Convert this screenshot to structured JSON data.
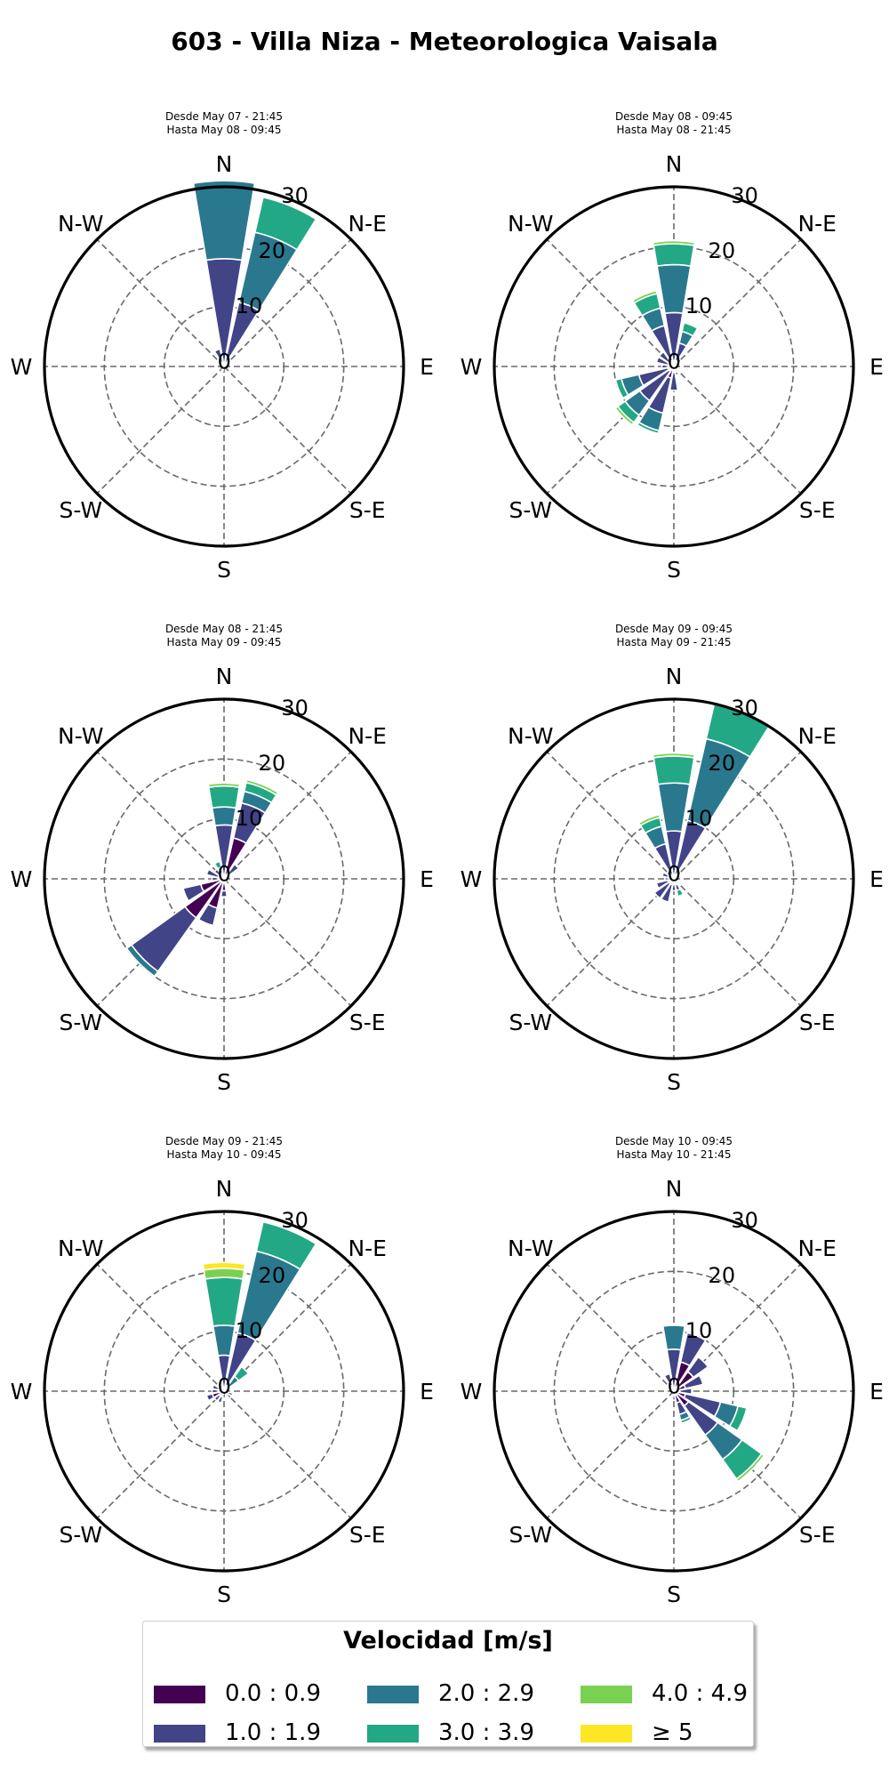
{
  "title": "603 - Villa Niza - Meteorologica Vaisala",
  "legend": {
    "title": "Velocidad [m/s]",
    "bins": [
      {
        "label": "0.0 : 0.9",
        "color": "#440154"
      },
      {
        "label": "1.0 : 1.9",
        "color": "#414487"
      },
      {
        "label": "2.0 : 2.9",
        "color": "#2a788e"
      },
      {
        "label": "3.0 : 3.9",
        "color": "#22a884"
      },
      {
        "label": "4.0 : 4.9",
        "color": "#7ad151"
      },
      {
        "label": "≥ 5",
        "color": "#fde725"
      }
    ]
  },
  "chart_data": [
    {
      "type": "windrose",
      "subtitle_from": "Desde May 07 - 21:45",
      "subtitle_to": "Hasta May 08 - 09:45",
      "direction_labels": [
        "N",
        "N-E",
        "E",
        "S-E",
        "S",
        "S-W",
        "W",
        "N-W"
      ],
      "radial_ticks": [
        0,
        10,
        20,
        30
      ],
      "rmax": 30,
      "sectors": [
        {
          "dir": 0,
          "stack": [
            0,
            18,
            13,
            0,
            0,
            0
          ]
        },
        {
          "dir": 22.5,
          "stack": [
            0,
            11,
            12,
            6,
            0,
            0
          ]
        },
        {
          "dir": 45,
          "stack": [
            0,
            1,
            0,
            0,
            0,
            0
          ]
        },
        {
          "dir": 337.5,
          "stack": [
            0.5,
            2.5,
            0,
            0,
            0,
            0
          ]
        },
        {
          "dir": 202.5,
          "stack": [
            0,
            0.8,
            0,
            0,
            0,
            0
          ]
        },
        {
          "dir": 315,
          "stack": [
            0,
            0.5,
            0,
            0,
            0,
            0
          ]
        }
      ]
    },
    {
      "type": "windrose",
      "subtitle_from": "Desde May 08 - 09:45",
      "subtitle_to": "Hasta May 08 - 21:45",
      "direction_labels": [
        "N",
        "N-E",
        "E",
        "S-E",
        "S",
        "S-W",
        "W",
        "N-W"
      ],
      "radial_ticks": [
        0,
        10,
        20,
        30
      ],
      "rmax": 30,
      "sectors": [
        {
          "dir": 0,
          "stack": [
            1,
            8,
            8,
            3.5,
            0.5,
            0
          ]
        },
        {
          "dir": 22.5,
          "stack": [
            1,
            3,
            2,
            1.5,
            0,
            0
          ]
        },
        {
          "dir": 45,
          "stack": [
            0.5,
            1,
            0,
            0,
            0,
            0
          ]
        },
        {
          "dir": 337.5,
          "stack": [
            1,
            6,
            3,
            2.5,
            0.5,
            0
          ]
        },
        {
          "dir": 315,
          "stack": [
            1,
            2,
            0,
            0,
            0,
            0
          ]
        },
        {
          "dir": 292.5,
          "stack": [
            1,
            2,
            0,
            0,
            0,
            0
          ]
        },
        {
          "dir": 270,
          "stack": [
            1,
            1,
            0,
            0,
            0,
            0
          ]
        },
        {
          "dir": 247.5,
          "stack": [
            1,
            5,
            3,
            1,
            0,
            0
          ]
        },
        {
          "dir": 225,
          "stack": [
            1,
            6,
            3,
            1.5,
            0.5,
            0
          ]
        },
        {
          "dir": 202.5,
          "stack": [
            2,
            6,
            3,
            0.5,
            0,
            0
          ]
        },
        {
          "dir": 180,
          "stack": [
            1,
            3,
            0,
            0,
            0,
            0
          ]
        },
        {
          "dir": 157.5,
          "stack": [
            1,
            0.5,
            0,
            0,
            0,
            0
          ]
        },
        {
          "dir": 135,
          "stack": [
            0.5,
            0.5,
            0,
            0,
            0,
            0
          ]
        }
      ]
    },
    {
      "type": "windrose",
      "subtitle_from": "Desde May 08 - 21:45",
      "subtitle_to": "Hasta May 09 - 09:45",
      "direction_labels": [
        "N",
        "N-E",
        "E",
        "S-E",
        "S",
        "S-W",
        "W",
        "N-W"
      ],
      "radial_ticks": [
        0,
        10,
        20,
        30
      ],
      "rmax": 30,
      "sectors": [
        {
          "dir": 0,
          "stack": [
            0,
            9,
            3,
            3.5,
            0.5,
            0
          ]
        },
        {
          "dir": 22.5,
          "stack": [
            7,
            6,
            2,
            1.5,
            0.5,
            0
          ]
        },
        {
          "dir": 45,
          "stack": [
            1,
            2,
            0,
            0,
            0,
            0
          ]
        },
        {
          "dir": 67.5,
          "stack": [
            0.5,
            0,
            0,
            0,
            0,
            0
          ]
        },
        {
          "dir": 337.5,
          "stack": [
            1,
            1,
            0,
            1,
            0,
            0
          ]
        },
        {
          "dir": 315,
          "stack": [
            1,
            1,
            0,
            0,
            0,
            0
          ]
        },
        {
          "dir": 292.5,
          "stack": [
            1,
            2,
            0,
            0,
            0,
            0
          ]
        },
        {
          "dir": 270,
          "stack": [
            1,
            1,
            0,
            0,
            0,
            0
          ]
        },
        {
          "dir": 247.5,
          "stack": [
            4,
            3,
            0,
            0,
            0,
            0
          ]
        },
        {
          "dir": 225,
          "stack": [
            8,
            11,
            1,
            0,
            0,
            0
          ]
        },
        {
          "dir": 202.5,
          "stack": [
            5,
            3,
            0,
            0,
            0,
            0
          ]
        },
        {
          "dir": 180,
          "stack": [
            2,
            1,
            0,
            0,
            0,
            0
          ]
        },
        {
          "dir": 157.5,
          "stack": [
            1,
            0,
            0,
            0,
            0,
            0
          ]
        }
      ]
    },
    {
      "type": "windrose",
      "subtitle_from": "Desde May 09 - 09:45",
      "subtitle_to": "Hasta May 09 - 21:45",
      "direction_labels": [
        "N",
        "N-E",
        "E",
        "S-E",
        "S",
        "S-W",
        "W",
        "N-W"
      ],
      "radial_ticks": [
        0,
        10,
        20,
        30
      ],
      "rmax": 30,
      "sectors": [
        {
          "dir": 0,
          "stack": [
            0,
            8,
            8,
            4.5,
            0.5,
            0
          ]
        },
        {
          "dir": 22.5,
          "stack": [
            0,
            10,
            14,
            6,
            0,
            0
          ]
        },
        {
          "dir": 45,
          "stack": [
            0.5,
            1,
            0,
            0,
            0,
            0
          ]
        },
        {
          "dir": 337.5,
          "stack": [
            0,
            6,
            3,
            1.5,
            0.5,
            0
          ]
        },
        {
          "dir": 315,
          "stack": [
            0.5,
            1,
            0,
            0,
            0,
            0
          ]
        },
        {
          "dir": 292.5,
          "stack": [
            1,
            1,
            0,
            0,
            0,
            0
          ]
        },
        {
          "dir": 270,
          "stack": [
            0.5,
            1,
            0,
            0,
            0,
            0
          ]
        },
        {
          "dir": 247.5,
          "stack": [
            1,
            2,
            0,
            0,
            0,
            0
          ]
        },
        {
          "dir": 225,
          "stack": [
            1,
            3,
            0,
            0,
            0,
            0
          ]
        },
        {
          "dir": 202.5,
          "stack": [
            1,
            3,
            0,
            0,
            0,
            0
          ]
        },
        {
          "dir": 180,
          "stack": [
            1,
            1,
            0,
            0,
            0,
            0
          ]
        },
        {
          "dir": 157.5,
          "stack": [
            1,
            1,
            0,
            1,
            0,
            0
          ]
        },
        {
          "dir": 135,
          "stack": [
            0.5,
            0.5,
            0,
            0,
            0,
            0
          ]
        }
      ]
    },
    {
      "type": "windrose",
      "subtitle_from": "Desde May 09 - 21:45",
      "subtitle_to": "Hasta May 10 - 09:45",
      "direction_labels": [
        "N",
        "N-E",
        "E",
        "S-E",
        "S",
        "S-W",
        "W",
        "N-W"
      ],
      "radial_ticks": [
        0,
        10,
        20,
        30
      ],
      "rmax": 30,
      "sectors": [
        {
          "dir": 0,
          "stack": [
            0,
            6,
            5,
            8,
            1.5,
            1
          ]
        },
        {
          "dir": 22.5,
          "stack": [
            1,
            9,
            14,
            5,
            0,
            0
          ]
        },
        {
          "dir": 45,
          "stack": [
            0,
            1,
            2,
            2,
            0,
            0
          ]
        },
        {
          "dir": 337.5,
          "stack": [
            0.5,
            0.5,
            0,
            0,
            0,
            0
          ]
        },
        {
          "dir": 292.5,
          "stack": [
            1,
            1,
            0,
            0,
            0,
            0
          ]
        },
        {
          "dir": 270,
          "stack": [
            1,
            1,
            0,
            0,
            0,
            0
          ]
        },
        {
          "dir": 247.5,
          "stack": [
            2,
            1,
            0,
            0,
            0,
            0
          ]
        },
        {
          "dir": 225,
          "stack": [
            1,
            1,
            0,
            0,
            0,
            0
          ]
        },
        {
          "dir": 202.5,
          "stack": [
            1,
            1,
            0,
            0,
            0,
            0
          ]
        },
        {
          "dir": 135,
          "stack": [
            0.5,
            1,
            0,
            0,
            0,
            0
          ]
        },
        {
          "dir": 112.5,
          "stack": [
            0.5,
            1,
            0,
            0,
            0,
            0
          ]
        }
      ]
    },
    {
      "type": "windrose",
      "subtitle_from": "Desde May 10 - 09:45",
      "subtitle_to": "Hasta May 10 - 21:45",
      "direction_labels": [
        "N",
        "N-E",
        "E",
        "S-E",
        "S",
        "S-W",
        "W",
        "N-W"
      ],
      "radial_ticks": [
        0,
        10,
        20,
        30
      ],
      "rmax": 30,
      "sectors": [
        {
          "dir": 0,
          "stack": [
            0,
            7,
            4,
            0,
            0,
            0
          ]
        },
        {
          "dir": 22.5,
          "stack": [
            5,
            5,
            0,
            0,
            0,
            0
          ]
        },
        {
          "dir": 45,
          "stack": [
            4,
            3,
            0,
            0,
            0,
            0
          ]
        },
        {
          "dir": 67.5,
          "stack": [
            2,
            3,
            0,
            0,
            0,
            0
          ]
        },
        {
          "dir": 90,
          "stack": [
            1,
            2,
            0,
            0,
            0,
            0
          ]
        },
        {
          "dir": 112.5,
          "stack": [
            2,
            6,
            3,
            1.5,
            0,
            0
          ]
        },
        {
          "dir": 135,
          "stack": [
            3,
            6,
            5,
            4,
            0.5,
            0
          ]
        },
        {
          "dir": 157.5,
          "stack": [
            2,
            2,
            1,
            0.5,
            0,
            0
          ]
        },
        {
          "dir": 180,
          "stack": [
            0.5,
            1,
            0,
            0,
            0,
            0
          ]
        },
        {
          "dir": 337.5,
          "stack": [
            1,
            2,
            0,
            0,
            0,
            0
          ]
        },
        {
          "dir": 315,
          "stack": [
            0.5,
            0.5,
            0,
            0,
            0,
            0
          ]
        },
        {
          "dir": 292.5,
          "stack": [
            0.5,
            0,
            0,
            0,
            0,
            0
          ]
        }
      ]
    }
  ]
}
